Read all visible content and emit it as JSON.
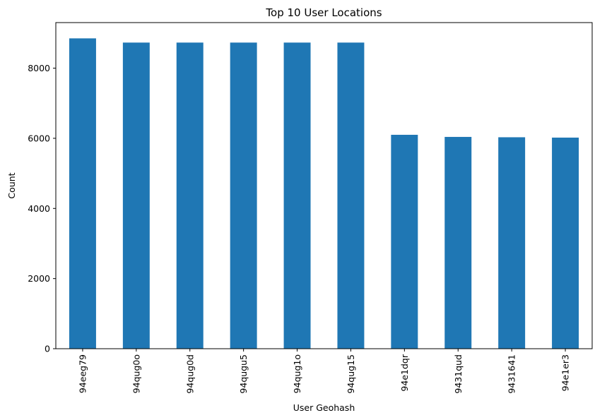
{
  "chart_data": {
    "type": "bar",
    "title": "Top 10 User Locations",
    "xlabel": "User Geohash",
    "ylabel": "Count",
    "categories": [
      "94eeg79",
      "94qug0o",
      "94qug0d",
      "94qugu5",
      "94qug1o",
      "94qug15",
      "94e1dqr",
      "9431qud",
      "9431641",
      "94e1er3"
    ],
    "values": [
      8850,
      8730,
      8730,
      8730,
      8730,
      8730,
      6100,
      6040,
      6030,
      6020
    ],
    "ylim": [
      0,
      9300
    ],
    "yticks": [
      0,
      2000,
      4000,
      6000,
      8000
    ],
    "grid": false,
    "legend": "none",
    "bar_color": "#1f77b4"
  }
}
